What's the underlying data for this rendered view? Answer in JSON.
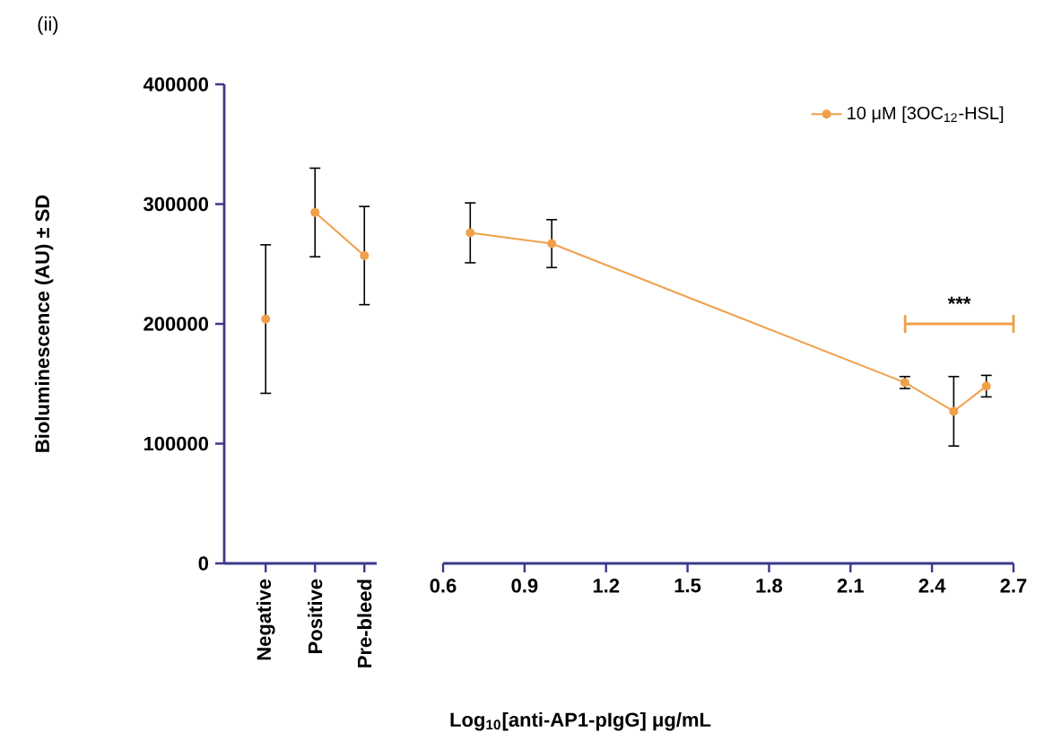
{
  "chart_data": [
    {
      "type": "line",
      "title": "(ii)",
      "ylabel": "Bioluminescence (AU) ± SD",
      "categories": [
        "Negative",
        "Positive",
        "Pre-bleed"
      ],
      "series": [
        {
          "color": "#f0a04b",
          "values": [
            204000,
            null,
            null
          ],
          "errors": [
            62000,
            null,
            null
          ]
        },
        {
          "color": "#f0a04b",
          "values": [
            null,
            293000,
            257000
          ],
          "errors": [
            null,
            37000,
            41000
          ]
        }
      ],
      "ylim": [
        0,
        400000
      ],
      "yticks": [
        0,
        100000,
        200000,
        300000,
        400000
      ],
      "marker": "circle"
    },
    {
      "type": "line",
      "xlabel": "Log$_{10}$[anti-AP1-pIgG] μg/mL",
      "x": [
        0.7,
        1.0,
        2.3,
        2.48,
        2.6
      ],
      "series": [
        {
          "name": "10 μM [3OC$_{12}$-HSL]",
          "color": "#f0a04b",
          "values": [
            276000,
            267000,
            151000,
            127000,
            148000
          ],
          "errors": [
            25000,
            20000,
            5000,
            29000,
            9000
          ]
        }
      ],
      "xlim": [
        0.6,
        2.7
      ],
      "xticks": [
        0.6,
        0.9,
        1.2,
        1.5,
        1.8,
        2.1,
        2.4,
        2.7
      ],
      "ylim": [
        0,
        400000
      ],
      "tick_labels": "x",
      "legend": "top right",
      "marker": "circle",
      "annotations": [
        "***"
      ]
    }
  ]
}
